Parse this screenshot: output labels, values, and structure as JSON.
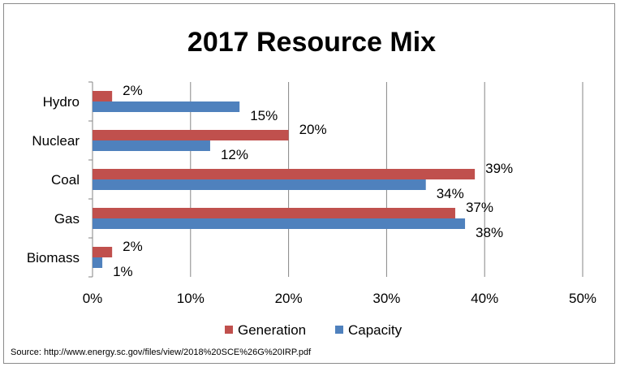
{
  "chart_data": {
    "type": "bar",
    "orientation": "horizontal",
    "title": "2017 Resource Mix",
    "categories": [
      "Hydro",
      "Nuclear",
      "Coal",
      "Gas",
      "Biomass"
    ],
    "series": [
      {
        "name": "Generation",
        "values": [
          2,
          20,
          39,
          37,
          2
        ],
        "color": "#c0504d"
      },
      {
        "name": "Capacity",
        "values": [
          15,
          12,
          34,
          38,
          1
        ],
        "color": "#4f81bd"
      }
    ],
    "data_label_suffix": "%",
    "xlim": [
      0,
      50
    ],
    "xticks": [
      0,
      10,
      20,
      30,
      40,
      50
    ],
    "xtick_labels": [
      "0%",
      "10%",
      "20%",
      "30%",
      "40%",
      "50%"
    ],
    "grid": "vertical",
    "legend_position": "bottom"
  },
  "source_note": "Source: http://www.energy.sc.gov/files/view/2018%20SCE%26G%20IRP.pdf"
}
